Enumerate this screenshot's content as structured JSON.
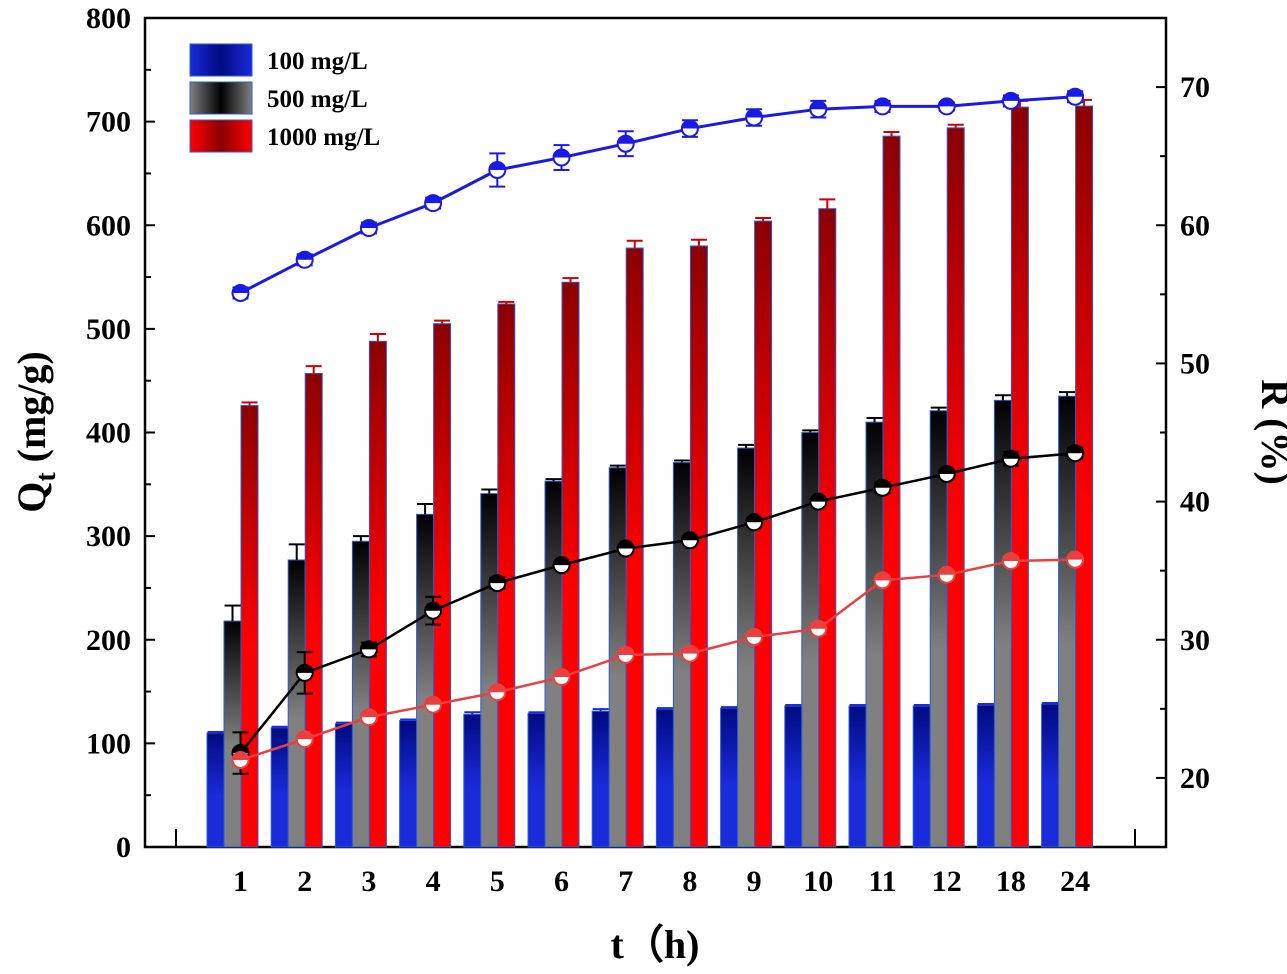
{
  "chart_data": {
    "type": "bar",
    "xlabel": "t（h)",
    "ylabel_left_main": "Q",
    "ylabel_left_sub": "t",
    "ylabel_left_unit": " (mg/g)",
    "ylabel_right": "R (%)",
    "categories": [
      "1",
      "2",
      "3",
      "4",
      "5",
      "6",
      "7",
      "8",
      "9",
      "10",
      "11",
      "12",
      "18",
      "24"
    ],
    "ylim_left": [
      0,
      800
    ],
    "yticks_left": [
      "0",
      "100",
      "200",
      "300",
      "400",
      "500",
      "600",
      "700",
      "800"
    ],
    "ylim_right": [
      15,
      75
    ],
    "yticks_right": [
      "20",
      "30",
      "40",
      "50",
      "60",
      "70"
    ],
    "legend": {
      "position": "top-left",
      "entries": [
        "100 mg/L",
        "500 mg/L",
        "1000 mg/L"
      ]
    },
    "bar_series": [
      {
        "name": "100 mg/L",
        "color": "#1a2bd9",
        "dark": "#000a80",
        "values": [
          110,
          115,
          119,
          122,
          128,
          129,
          131,
          133,
          134,
          136,
          136,
          136,
          137,
          138
        ],
        "errors": [
          1,
          1,
          1,
          1,
          2,
          1,
          2,
          1,
          1,
          1,
          1,
          1,
          1,
          1
        ]
      },
      {
        "name": "500 mg/L",
        "color": "#808080",
        "dark": "#000000",
        "values": [
          218,
          277,
          295,
          321,
          341,
          353,
          366,
          371,
          385,
          400,
          410,
          421,
          431,
          435
        ],
        "errors": [
          15,
          15,
          5,
          10,
          4,
          2,
          2,
          2,
          3,
          2,
          4,
          3,
          5,
          4
        ]
      },
      {
        "name": "1000 mg/L",
        "color": "#ff0000",
        "dark": "#8b0000",
        "values": [
          426,
          457,
          488,
          505,
          524,
          545,
          578,
          580,
          604,
          616,
          686,
          694,
          714,
          715
        ],
        "errors": [
          3,
          7,
          7,
          3,
          2,
          4,
          7,
          6,
          3,
          9,
          4,
          3,
          6,
          6
        ]
      }
    ],
    "line_series": [
      {
        "name": "R 100 mg/L",
        "color": "#1a1ae6",
        "values": [
          55.1,
          57.5,
          59.8,
          61.6,
          64.0,
          64.9,
          65.9,
          67.0,
          67.8,
          68.4,
          68.6,
          68.6,
          69.0,
          69.3
        ],
        "errors": [
          0.4,
          0.4,
          0.4,
          0.4,
          1.2,
          0.9,
          0.9,
          0.6,
          0.6,
          0.6,
          0.4,
          0.3,
          0.4,
          0.4
        ]
      },
      {
        "name": "R 500 mg/L",
        "color": "#000000",
        "values": [
          21.8,
          27.6,
          29.3,
          32.1,
          34.1,
          35.4,
          36.6,
          37.2,
          38.5,
          40.0,
          41.0,
          42.0,
          43.1,
          43.5
        ],
        "errors": [
          1.5,
          1.5,
          0.5,
          1.0,
          0.4,
          0.2,
          0.2,
          0.2,
          0.3,
          0.2,
          0.4,
          0.3,
          0.5,
          0.4
        ]
      },
      {
        "name": "R 1000 mg/L",
        "color": "#e84040",
        "values": [
          21.3,
          22.8,
          24.4,
          25.3,
          26.2,
          27.3,
          28.9,
          29.0,
          30.2,
          30.8,
          34.3,
          34.7,
          35.7,
          35.8
        ],
        "errors": [
          0.2,
          0.3,
          0.3,
          0.2,
          0.1,
          0.2,
          0.3,
          0.3,
          0.2,
          0.4,
          0.2,
          0.2,
          0.3,
          0.3
        ]
      }
    ]
  }
}
